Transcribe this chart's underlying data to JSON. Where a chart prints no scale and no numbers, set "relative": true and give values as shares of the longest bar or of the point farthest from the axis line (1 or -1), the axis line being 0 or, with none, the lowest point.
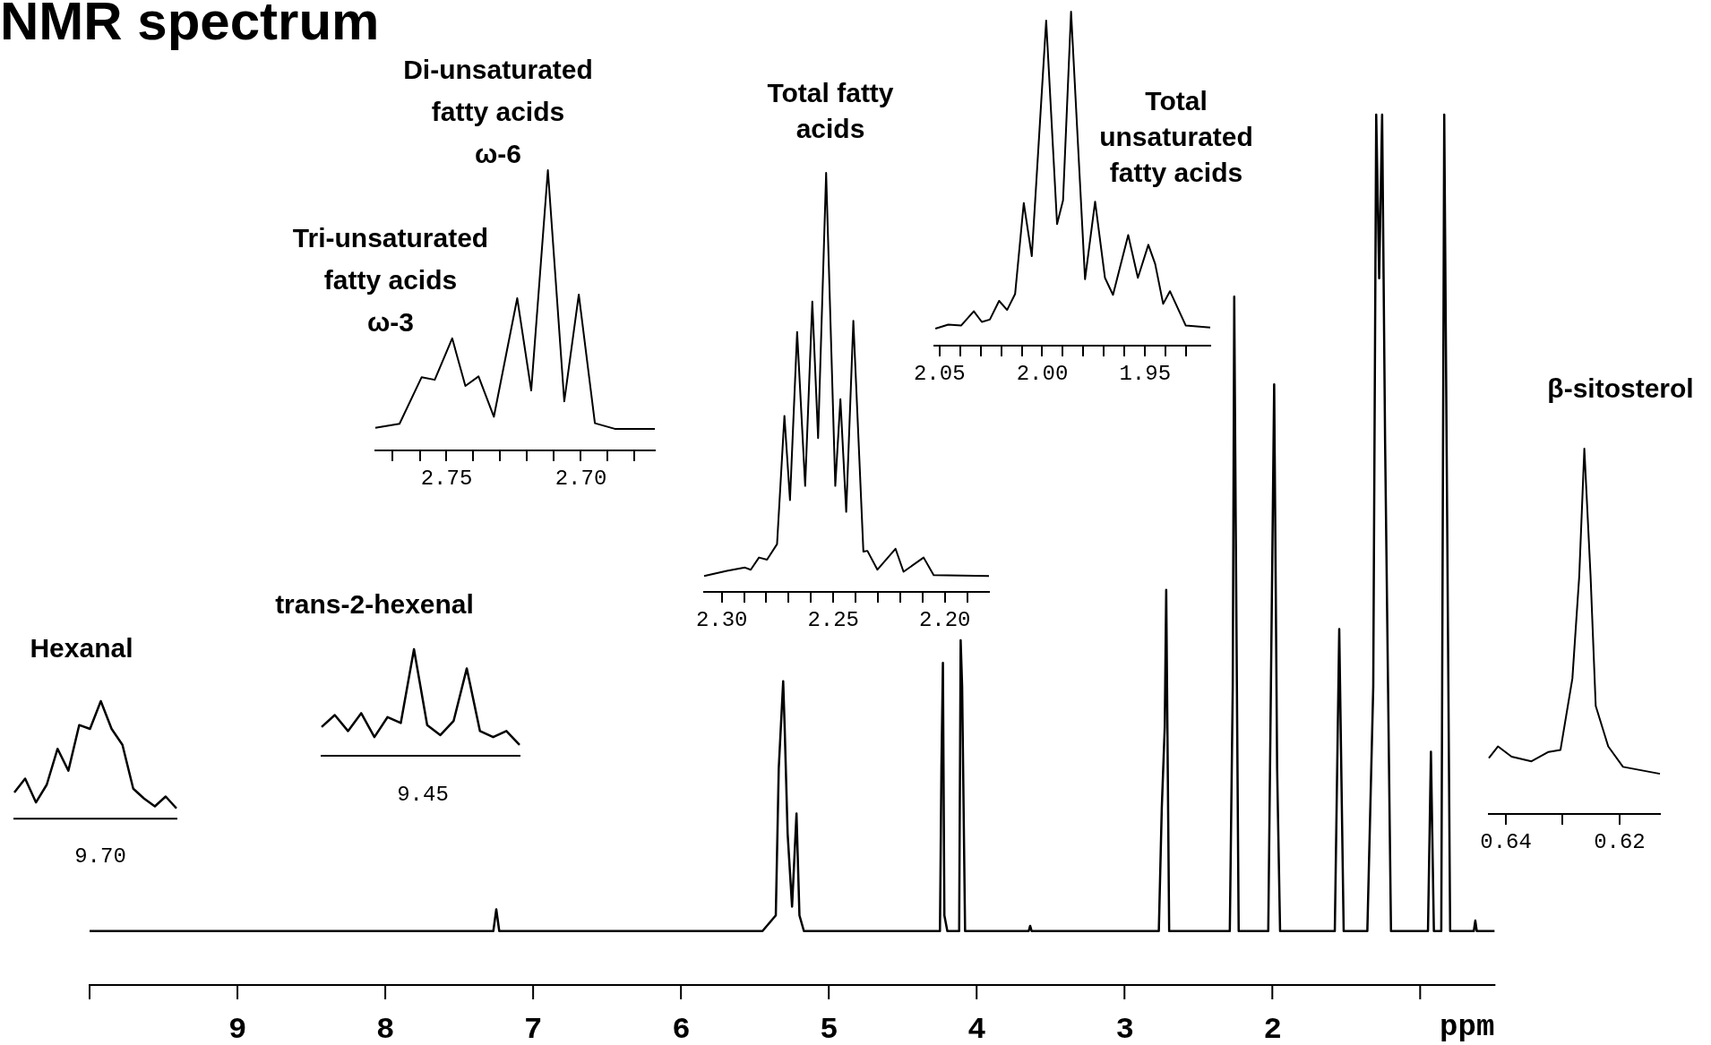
{
  "chart_data": [
    {
      "type": "line",
      "title": "NMR spectrum",
      "xlabel": "ppm",
      "relative": true,
      "xlim": [
        10,
        0.5
      ],
      "xticks": [
        {
          "value": 10,
          "label": null
        },
        9,
        8,
        7,
        6,
        5,
        4,
        3,
        2,
        {
          "value": 1,
          "label": null
        }
      ],
      "series": [
        {
          "color": "#000000",
          "x": [
            10,
            7.27,
            7.25,
            7.23,
            5.45,
            5.36,
            5.34,
            5.31,
            5.3,
            5.28,
            5.25,
            5.22,
            5.2,
            5.17,
            4.25,
            4.24,
            4.23,
            4.22,
            4.2,
            4.12,
            4.11,
            4.1,
            4.08,
            3.65,
            3.64,
            3.63,
            2.77,
            2.75,
            2.73,
            2.72,
            2.7,
            2.29,
            2.27,
            2.26,
            2.25,
            2.23,
            2.03,
            2.0,
            1.99,
            1.97,
            1.95,
            1.58,
            1.55,
            1.52,
            1.36,
            1.32,
            1.3,
            1.28,
            1.26,
            1.24,
            1.2,
            0.95,
            0.93,
            0.91,
            0.86,
            0.84,
            0.82,
            0.8,
            0.64,
            0.63,
            0.62,
            0.5
          ],
          "values": [
            0.062,
            0.062,
            0.087,
            0.062,
            0.062,
            0.08,
            0.249,
            0.349,
            0.296,
            0.174,
            0.09,
            0.197,
            0.08,
            0.062,
            0.062,
            0.249,
            0.37,
            0.08,
            0.062,
            0.062,
            0.396,
            0.343,
            0.062,
            0.062,
            0.068,
            0.062,
            0.062,
            0.203,
            0.296,
            0.454,
            0.062,
            0.062,
            0.343,
            0.791,
            0.531,
            0.062,
            0.062,
            0.531,
            0.69,
            0.249,
            0.062,
            0.062,
            0.409,
            0.062,
            0.062,
            0.343,
            1,
            0.812,
            1,
            0.625,
            0.062,
            0.062,
            0.268,
            0.062,
            0.062,
            1,
            0.531,
            0.062,
            0.062,
            0.074,
            0.062,
            0.062
          ]
        }
      ]
    },
    {
      "type": "line",
      "relative": true,
      "xlim": [
        2.7765,
        2.6725
      ],
      "xticks": [
        {
          "value": 2.77,
          "label": null
        },
        {
          "value": 2.76,
          "label": null
        },
        2.75,
        {
          "value": 2.74,
          "label": null
        },
        {
          "value": 2.73,
          "label": null
        },
        {
          "value": 2.72,
          "label": null
        },
        {
          "value": 2.71,
          "label": null
        },
        {
          "value": 2.7,
          "label": "2.70"
        },
        {
          "value": 2.69,
          "label": null
        },
        {
          "value": 2.68,
          "label": null
        }
      ],
      "annotations": [
        "Di-unsaturated\nfatty acids\nω-6",
        "Tri-unsaturated\nfatty acids\nω-3"
      ],
      "series": [
        {
          "color": "#000000",
          "x": [
            2.7765,
            2.7675,
            2.7593,
            2.7544,
            2.7479,
            2.743,
            2.7381,
            2.7324,
            2.7237,
            2.7185,
            2.7123,
            2.7062,
            2.7008,
            2.6948,
            2.6874,
            2.6725
          ],
          "values": [
            0.081,
            0.095,
            0.261,
            0.252,
            0.4,
            0.23,
            0.264,
            0.12,
            0.543,
            0.214,
            1,
            0.175,
            0.556,
            0.097,
            0.077,
            0.077
          ]
        }
      ]
    },
    {
      "type": "line",
      "title": "Total fatty\nacids",
      "relative": true,
      "xlim": [
        2.3079,
        2.1802
      ],
      "xticks": [
        {
          "value": 2.3,
          "label": "2.30"
        },
        {
          "value": 2.29,
          "label": null
        },
        {
          "value": 2.28,
          "label": null
        },
        {
          "value": 2.27,
          "label": null
        },
        {
          "value": 2.26,
          "label": null
        },
        2.25,
        {
          "value": 2.24,
          "label": null
        },
        {
          "value": 2.23,
          "label": null
        },
        {
          "value": 2.22,
          "label": null
        },
        {
          "value": 2.21,
          "label": null
        },
        {
          "value": 2.2,
          "label": "2.20"
        },
        {
          "value": 2.19,
          "label": null
        }
      ],
      "series": [
        {
          "color": "#000000",
          "x": [
            2.3079,
            2.2977,
            2.2896,
            2.287,
            2.2833,
            2.2797,
            2.2752,
            2.2719,
            2.2694,
            2.2662,
            2.2626,
            2.2594,
            2.2568,
            2.2532,
            2.2491,
            2.2468,
            2.2442,
            2.241,
            2.2365,
            2.2347,
            2.2302,
            2.2221,
            2.2185,
            2.2095,
            2.205,
            2.1802
          ],
          "values": [
            0.038,
            0.05,
            0.058,
            0.053,
            0.082,
            0.077,
            0.114,
            0.42,
            0.219,
            0.62,
            0.253,
            0.693,
            0.367,
            1,
            0.253,
            0.46,
            0.191,
            0.647,
            0.096,
            0.098,
            0.053,
            0.103,
            0.048,
            0.082,
            0.04,
            0.038
          ]
        }
      ]
    },
    {
      "type": "line",
      "title": "Total\nunsaturated\nfatty acids",
      "relative": true,
      "xlim": [
        2.0525,
        1.9183
      ],
      "xticks": [
        {
          "value": 2.05,
          "label": "2.05"
        },
        {
          "value": 2.04,
          "label": null
        },
        {
          "value": 2.03,
          "label": null
        },
        {
          "value": 2.02,
          "label": null
        },
        {
          "value": 2.01,
          "label": null
        },
        {
          "value": 2.0,
          "label": "2.00"
        },
        {
          "value": 1.99,
          "label": null
        },
        {
          "value": 1.98,
          "label": null
        },
        {
          "value": 1.97,
          "label": null
        },
        {
          "value": 1.96,
          "label": null
        },
        1.95,
        {
          "value": 1.94,
          "label": null
        },
        {
          "value": 1.93,
          "label": null
        }
      ],
      "series": [
        {
          "color": "#000000",
          "x": [
            2.052,
            2.0457,
            2.0395,
            2.0333,
            2.0294,
            2.0255,
            2.021,
            2.0171,
            2.0132,
            2.009,
            2.0051,
            1.9981,
            1.9928,
            1.9899,
            1.986,
            1.9792,
            1.9743,
            1.9695,
            1.9656,
            1.9582,
            1.9535,
            1.9484,
            1.9451,
            1.9412,
            1.9379,
            1.9302,
            1.9183
          ],
          "values": [
            0.051,
            0.063,
            0.06,
            0.103,
            0.071,
            0.078,
            0.134,
            0.107,
            0.155,
            0.427,
            0.268,
            0.973,
            0.364,
            0.435,
            1,
            0.199,
            0.431,
            0.203,
            0.152,
            0.331,
            0.203,
            0.302,
            0.245,
            0.125,
            0.163,
            0.06,
            0.054
          ]
        }
      ]
    },
    {
      "type": "line",
      "title": "β-sitosterol",
      "relative": true,
      "xlim": [
        0.643,
        0.6129
      ],
      "xticks": [
        0.64,
        {
          "value": 0.63,
          "label": null
        },
        0.62
      ],
      "series": [
        {
          "color": "#000000",
          "x": [
            0.643,
            0.6414,
            0.639,
            0.6355,
            0.6325,
            0.6304,
            0.6283,
            0.6271,
            0.6262,
            0.6251,
            0.6242,
            0.622,
            0.6194,
            0.6129
          ],
          "values": [
            0.153,
            0.185,
            0.157,
            0.144,
            0.17,
            0.175,
            0.371,
            0.65,
            1,
            0.65,
            0.296,
            0.185,
            0.129,
            0.11
          ]
        }
      ]
    },
    {
      "type": "line",
      "title": "trans-2-hexenal",
      "relative": true,
      "annotations": [
        "9.45"
      ],
      "categories": [
        null,
        null,
        null,
        null,
        null,
        null,
        null,
        null,
        null,
        null,
        null,
        null,
        null,
        null,
        null,
        null
      ],
      "series": [
        {
          "color": "#000000",
          "values": [
            0.27,
            0.382,
            0.232,
            0.4,
            0.175,
            0.363,
            0.307,
            1,
            0.288,
            0.194,
            0.326,
            0.82,
            0.232,
            0.175,
            0.232,
            0.101
          ]
        }
      ]
    },
    {
      "type": "line",
      "title": "Hexanal",
      "relative": true,
      "annotations": [
        "9.70"
      ],
      "categories": [
        null,
        null,
        null,
        null,
        null,
        null,
        null,
        null,
        null,
        null,
        null,
        null,
        null,
        null,
        null,
        null
      ],
      "series": [
        {
          "color": "#000000",
          "values": [
            0.223,
            0.341,
            0.139,
            0.29,
            0.595,
            0.409,
            0.797,
            0.764,
            1,
            0.764,
            0.629,
            0.256,
            0.172,
            0.105,
            0.189,
            0.088
          ]
        }
      ]
    }
  ]
}
